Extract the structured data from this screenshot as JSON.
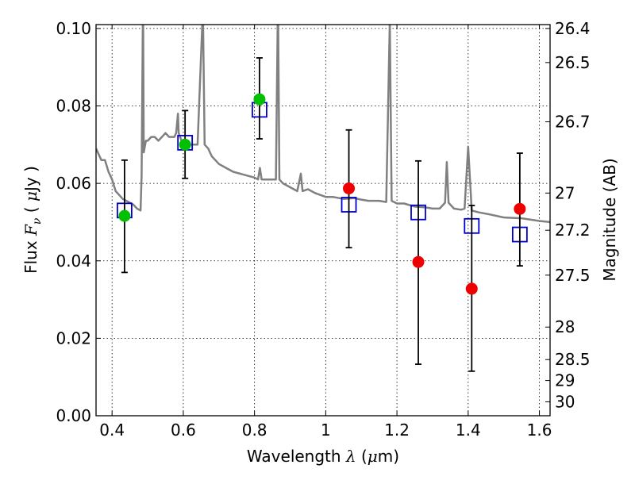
{
  "chart_data": {
    "type": "scatter",
    "xlabel": "Wavelength  λ (μm)",
    "ylabel": "Flux  F_ν  ( μJy )",
    "ylabel_right": "Magnitude (AB)",
    "xlim": [
      0.355,
      1.63
    ],
    "ylim": [
      0.0,
      0.101
    ],
    "grid": true,
    "x_ticks": [
      {
        "value": 0.4,
        "label": "0.4"
      },
      {
        "value": 0.6,
        "label": "0.6"
      },
      {
        "value": 0.8,
        "label": "0.8"
      },
      {
        "value": 1.0,
        "label": "1"
      },
      {
        "value": 1.2,
        "label": "1.2"
      },
      {
        "value": 1.4,
        "label": "1.4"
      },
      {
        "value": 1.6,
        "label": "1.6"
      }
    ],
    "y_ticks": [
      {
        "value": 0.0,
        "label": "0.00"
      },
      {
        "value": 0.02,
        "label": "0.02"
      },
      {
        "value": 0.04,
        "label": "0.04"
      },
      {
        "value": 0.06,
        "label": "0.06"
      },
      {
        "value": 0.08,
        "label": "0.08"
      },
      {
        "value": 0.1,
        "label": "0.10"
      }
    ],
    "mag_ticks": [
      {
        "flux": 0.1,
        "label": "26.4"
      },
      {
        "flux": 0.0912,
        "label": "26.5"
      },
      {
        "flux": 0.0759,
        "label": "26.7"
      },
      {
        "flux": 0.0575,
        "label": "27"
      },
      {
        "flux": 0.0479,
        "label": "27.2"
      },
      {
        "flux": 0.0363,
        "label": "27.5"
      },
      {
        "flux": 0.0229,
        "label": "28"
      },
      {
        "flux": 0.0145,
        "label": "28.5"
      },
      {
        "flux": 0.0091,
        "label": "29"
      },
      {
        "flux": 0.0036,
        "label": "30"
      }
    ],
    "series": [
      {
        "kind": "model_spectrum",
        "color": "#808080",
        "points": [
          [
            0.355,
            0.069
          ],
          [
            0.37,
            0.066
          ],
          [
            0.38,
            0.066
          ],
          [
            0.39,
            0.063
          ],
          [
            0.4,
            0.061
          ],
          [
            0.41,
            0.058
          ],
          [
            0.42,
            0.057
          ],
          [
            0.43,
            0.056
          ],
          [
            0.44,
            0.0555
          ],
          [
            0.45,
            0.055
          ],
          [
            0.46,
            0.0545
          ],
          [
            0.47,
            0.0535
          ],
          [
            0.48,
            0.053
          ],
          [
            0.483,
            0.062
          ],
          [
            0.487,
            0.108
          ],
          [
            0.489,
            0.068
          ],
          [
            0.495,
            0.071
          ],
          [
            0.5,
            0.071
          ],
          [
            0.51,
            0.072
          ],
          [
            0.52,
            0.072
          ],
          [
            0.53,
            0.071
          ],
          [
            0.54,
            0.072
          ],
          [
            0.55,
            0.073
          ],
          [
            0.56,
            0.072
          ],
          [
            0.575,
            0.072
          ],
          [
            0.58,
            0.073
          ],
          [
            0.585,
            0.078
          ],
          [
            0.587,
            0.073
          ],
          [
            0.595,
            0.071
          ],
          [
            0.6,
            0.07
          ],
          [
            0.61,
            0.069
          ],
          [
            0.62,
            0.07
          ],
          [
            0.63,
            0.07
          ],
          [
            0.64,
            0.07
          ],
          [
            0.655,
            0.105
          ],
          [
            0.66,
            0.07
          ],
          [
            0.67,
            0.069
          ],
          [
            0.68,
            0.067
          ],
          [
            0.69,
            0.066
          ],
          [
            0.7,
            0.065
          ],
          [
            0.72,
            0.064
          ],
          [
            0.74,
            0.063
          ],
          [
            0.76,
            0.0625
          ],
          [
            0.78,
            0.062
          ],
          [
            0.8,
            0.0615
          ],
          [
            0.81,
            0.061
          ],
          [
            0.815,
            0.064
          ],
          [
            0.82,
            0.061
          ],
          [
            0.84,
            0.061
          ],
          [
            0.86,
            0.061
          ],
          [
            0.866,
            0.108
          ],
          [
            0.87,
            0.061
          ],
          [
            0.88,
            0.06
          ],
          [
            0.9,
            0.059
          ],
          [
            0.92,
            0.058
          ],
          [
            0.93,
            0.0625
          ],
          [
            0.935,
            0.058
          ],
          [
            0.95,
            0.0585
          ],
          [
            0.97,
            0.0575
          ],
          [
            1.0,
            0.0565
          ],
          [
            1.02,
            0.0565
          ],
          [
            1.05,
            0.056
          ],
          [
            1.08,
            0.0562
          ],
          [
            1.1,
            0.0558
          ],
          [
            1.12,
            0.0555
          ],
          [
            1.15,
            0.0555
          ],
          [
            1.17,
            0.0552
          ],
          [
            1.18,
            0.102
          ],
          [
            1.185,
            0.0555
          ],
          [
            1.2,
            0.0548
          ],
          [
            1.22,
            0.0548
          ],
          [
            1.25,
            0.054
          ],
          [
            1.28,
            0.0538
          ],
          [
            1.3,
            0.0535
          ],
          [
            1.32,
            0.0535
          ],
          [
            1.335,
            0.055
          ],
          [
            1.34,
            0.0655
          ],
          [
            1.345,
            0.055
          ],
          [
            1.36,
            0.0535
          ],
          [
            1.38,
            0.0532
          ],
          [
            1.39,
            0.0535
          ],
          [
            1.4,
            0.0695
          ],
          [
            1.41,
            0.053
          ],
          [
            1.43,
            0.0525
          ],
          [
            1.46,
            0.052
          ],
          [
            1.5,
            0.0512
          ],
          [
            1.55,
            0.051
          ],
          [
            1.6,
            0.0503
          ],
          [
            1.63,
            0.05
          ]
        ]
      },
      {
        "kind": "model_photometry",
        "marker": "open-square",
        "color": "#0000cc",
        "points": [
          [
            0.435,
            0.053
          ],
          [
            0.605,
            0.0705
          ],
          [
            0.814,
            0.079
          ],
          [
            1.065,
            0.0545
          ],
          [
            1.26,
            0.0525
          ],
          [
            1.41,
            0.049
          ],
          [
            1.545,
            0.0468
          ]
        ]
      },
      {
        "kind": "observed_optical",
        "marker": "filled-circle",
        "color": "#00c000",
        "points": [
          {
            "x": 0.435,
            "y": 0.0516,
            "err_lo": 0.037,
            "err_hi": 0.066
          },
          {
            "x": 0.605,
            "y": 0.07,
            "err_lo": 0.0613,
            "err_hi": 0.0788
          },
          {
            "x": 0.814,
            "y": 0.0817,
            "err_lo": 0.0715,
            "err_hi": 0.0924
          }
        ]
      },
      {
        "kind": "observed_nir",
        "marker": "filled-circle",
        "color": "#ee0000",
        "points": [
          {
            "x": 1.065,
            "y": 0.0587,
            "err_lo": 0.0434,
            "err_hi": 0.0738
          },
          {
            "x": 1.26,
            "y": 0.0397,
            "err_lo": 0.0133,
            "err_hi": 0.0658
          },
          {
            "x": 1.41,
            "y": 0.0328,
            "err_lo": 0.0115,
            "err_hi": 0.0543
          },
          {
            "x": 1.545,
            "y": 0.0534,
            "err_lo": 0.0387,
            "err_hi": 0.0678
          }
        ]
      }
    ]
  }
}
